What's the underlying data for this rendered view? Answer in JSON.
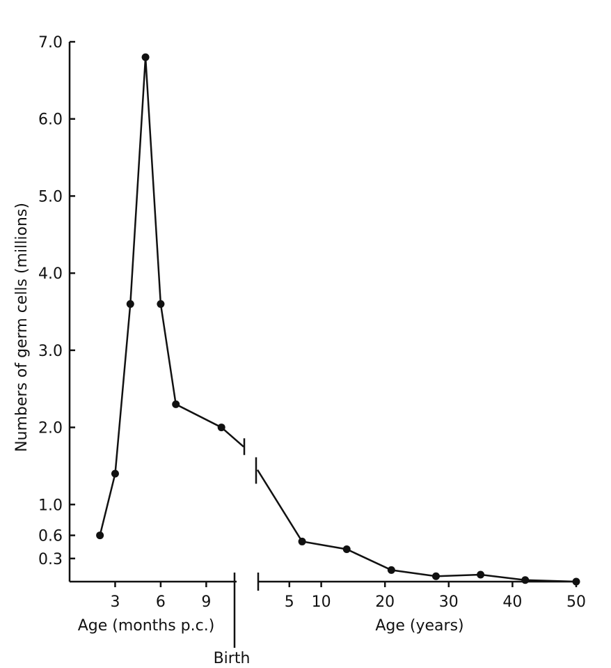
{
  "chart_data": {
    "type": "line",
    "title": "",
    "ylabel": "Numbers of germ cells (millions)",
    "ylim": [
      0,
      7.0
    ],
    "yticks": [
      {
        "value": 0.3,
        "label": "0.3"
      },
      {
        "value": 0.6,
        "label": "0.6"
      },
      {
        "value": 1.0,
        "label": "1.0"
      },
      {
        "value": 2.0,
        "label": "2.0"
      },
      {
        "value": 3.0,
        "label": "3.0"
      },
      {
        "value": 4.0,
        "label": "4.0"
      },
      {
        "value": 5.0,
        "label": "5.0"
      },
      {
        "value": 6.0,
        "label": "6.0"
      },
      {
        "value": 7.0,
        "label": "7.0"
      }
    ],
    "grid": false,
    "birth_label": "Birth",
    "segments": [
      {
        "xlabel": "Age (months p.c.)",
        "xlim": [
          0,
          11
        ],
        "xticks": [
          {
            "value": 3,
            "label": "3"
          },
          {
            "value": 6,
            "label": "6"
          },
          {
            "value": 9,
            "label": "9"
          }
        ],
        "x": [
          2,
          3,
          4,
          5,
          6,
          7,
          10
        ],
        "y": [
          0.6,
          1.4,
          3.6,
          6.8,
          3.6,
          2.3,
          2.0
        ],
        "trailing_y": 1.75
      },
      {
        "xlabel": "Age (years)",
        "xlim": [
          0,
          50
        ],
        "xticks": [
          {
            "value": 5,
            "label": "5"
          },
          {
            "value": 10,
            "label": "10"
          },
          {
            "value": 20,
            "label": "20"
          },
          {
            "value": 30,
            "label": "30"
          },
          {
            "value": 40,
            "label": "40"
          },
          {
            "value": 50,
            "label": "50"
          }
        ],
        "leading_y": 1.45,
        "x": [
          7,
          14,
          21,
          28,
          35,
          42,
          50
        ],
        "y": [
          0.52,
          0.42,
          0.15,
          0.07,
          0.09,
          0.02,
          0.0
        ]
      }
    ]
  }
}
